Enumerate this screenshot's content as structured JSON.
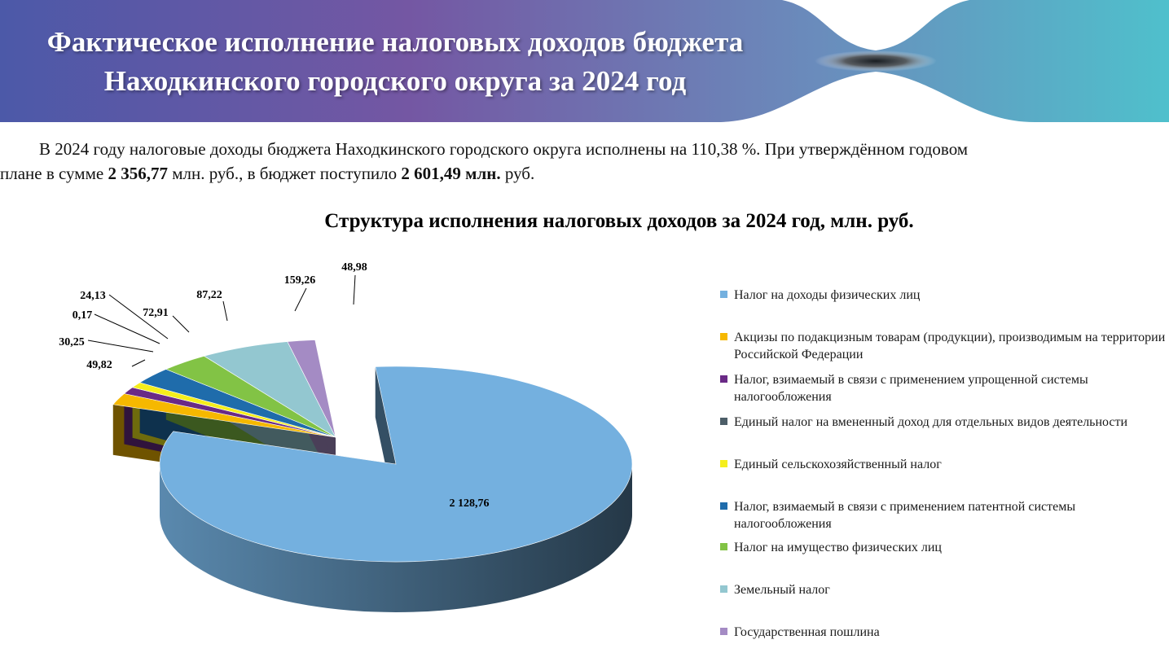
{
  "header": {
    "title_line1": "Фактическое исполнение налоговых доходов бюджета",
    "title_line2": "Находкинского городского округа за 2024 год"
  },
  "intro": {
    "part1": "В 2024 году налоговые доходы бюджета Находкинского городского округа исполнены на 110,38 %. При утверждённом годовом",
    "part2": "плане в сумме ",
    "plan_amount": "2 356,77",
    "part3": " млн. руб., в бюджет поступило ",
    "received_amount": "2 601,49 млн.",
    "part4": " руб."
  },
  "chart_data": {
    "type": "pie",
    "title": "Структура исполнения налоговых доходов за 2024 год, млн. руб.",
    "legend_position": "right",
    "slices": [
      {
        "name": "Налог на доходы физических лиц",
        "value": 2128.76,
        "label": "2 128,76",
        "color": "#74b0df"
      },
      {
        "name": "Акцизы по подакцизным товарам (продукции), производимым на территории Российской Федерации",
        "value": 49.82,
        "label": "49,82",
        "color": "#f6b800"
      },
      {
        "name": "Налог, взимаемый в связи с применением упрощенной системы налогообложения",
        "value": 30.25,
        "label": "30,25",
        "color": "#6a2a86"
      },
      {
        "name": "Единый налог на вмененный доход для отдельных видов деятельности",
        "value": 0.17,
        "label": "0,17",
        "color": "#4d5e68"
      },
      {
        "name": "Единый сельскохозяйственный налог",
        "value": 24.13,
        "label": "24,13",
        "color": "#f5ee1c"
      },
      {
        "name": "Налог, взимаемый в связи с применением патентной системы налогообложения",
        "value": 72.91,
        "label": "72,91",
        "color": "#1f6cab"
      },
      {
        "name": "Налог на имущество физических лиц",
        "value": 87.22,
        "label": "87,22",
        "color": "#82c345"
      },
      {
        "name": "Земельный налог",
        "value": 159.26,
        "label": "159,26",
        "color": "#93c7d0"
      },
      {
        "name": "Государственная пошлина",
        "value": 48.98,
        "label": "48,98",
        "color": "#a48bc4"
      }
    ]
  }
}
